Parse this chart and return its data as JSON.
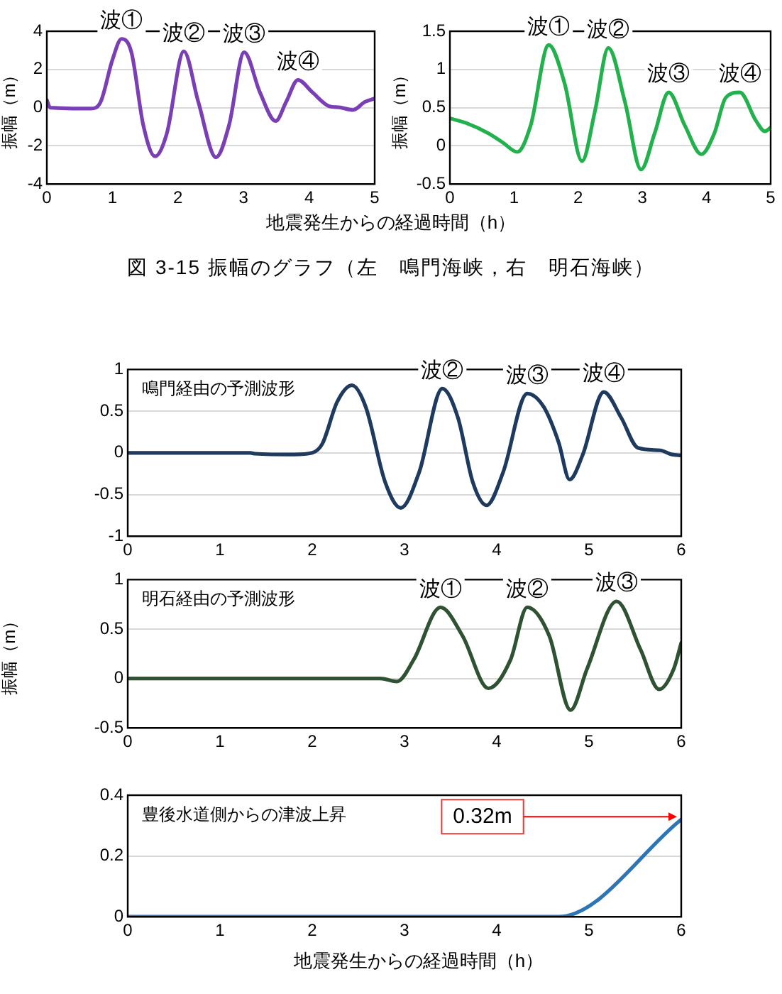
{
  "chart_data": [
    {
      "type": "line",
      "ylabel": "振幅（m）",
      "xlabel": "地震発生からの経過時間（h）",
      "color": "#7b3fb5",
      "marker": "none",
      "line_style": "solid",
      "grid": "y",
      "xlim": [
        0,
        5
      ],
      "xticks": [
        0,
        1,
        2,
        3,
        4,
        5
      ],
      "ylim": [
        -4,
        4
      ],
      "yticks": [
        -4,
        -2,
        0,
        2,
        4
      ],
      "x": [
        0,
        0.05,
        0.67,
        0.82,
        1.0,
        1.14,
        1.29,
        1.47,
        1.65,
        1.83,
        2.09,
        2.31,
        2.58,
        2.78,
        3.01,
        3.25,
        3.49,
        3.65,
        3.83,
        4.05,
        4.31,
        4.45,
        4.67,
        4.85,
        5.0
      ],
      "values": [
        0.4,
        0,
        -0.05,
        0.3,
        2.5,
        3.6,
        2.9,
        -0.9,
        -2.55,
        -1.35,
        2.95,
        0.3,
        -2.6,
        -0.9,
        2.9,
        0.8,
        -0.7,
        0.3,
        1.45,
        0.8,
        0.07,
        0.02,
        -0.12,
        0.3,
        0.48
      ],
      "annotations": [
        {
          "text": "波①",
          "x": 1.14,
          "y": 3.6
        },
        {
          "text": "波②",
          "x": 2.09,
          "y": 2.95
        },
        {
          "text": "波③",
          "x": 3.01,
          "y": 2.9
        },
        {
          "text": "波④",
          "x": 3.83,
          "y": 1.45
        },
        "図 3-15 振幅のグラフ（左　鳴門海峡，右　明石海峡）"
      ]
    },
    {
      "type": "line",
      "ylabel": "振幅（m）",
      "color": "#22b14c",
      "marker": "none",
      "line_style": "solid",
      "grid": "y",
      "xlim": [
        0,
        5
      ],
      "xticks": [
        0,
        1,
        2,
        3,
        4,
        5
      ],
      "ylim": [
        -0.5,
        1.5
      ],
      "yticks": [
        -0.5,
        0,
        0.5,
        1,
        1.5
      ],
      "x": [
        0,
        0.25,
        0.61,
        0.83,
        1.05,
        1.26,
        1.54,
        1.79,
        2.06,
        2.26,
        2.47,
        2.73,
        2.98,
        3.19,
        3.41,
        3.66,
        3.92,
        4.12,
        4.3,
        4.52,
        4.77,
        4.91,
        5.0
      ],
      "values": [
        0.36,
        0.3,
        0.16,
        0.04,
        -0.08,
        0.27,
        1.32,
        0.81,
        -0.2,
        0.45,
        1.28,
        0.57,
        -0.31,
        0.16,
        0.7,
        0.27,
        -0.11,
        0.16,
        0.63,
        0.7,
        0.33,
        0.19,
        0.24
      ],
      "annotations": [
        {
          "text": "波①",
          "x": 1.54,
          "y": 1.32
        },
        {
          "text": "波②",
          "x": 2.47,
          "y": 1.28
        },
        {
          "text": "波③",
          "x": 3.41,
          "y": 0.7
        },
        {
          "text": "波④",
          "x": 4.52,
          "y": 0.7
        }
      ]
    },
    {
      "type": "line",
      "title": "鳴門経由の予測波形",
      "color": "#1f3a5f",
      "marker": "none",
      "line_style": "solid",
      "grid": "y",
      "xlim": [
        0,
        6
      ],
      "xticks": [
        0,
        1,
        2,
        3,
        4,
        5,
        6
      ],
      "ylim": [
        -1,
        1
      ],
      "yticks": [
        -1,
        -0.5,
        0,
        0.5,
        1
      ],
      "x": [
        0,
        1.33,
        1.38,
        1.8,
        2.0,
        2.11,
        2.27,
        2.43,
        2.58,
        2.79,
        2.96,
        3.16,
        3.41,
        3.58,
        3.74,
        3.89,
        4.07,
        4.33,
        4.51,
        4.67,
        4.79,
        4.93,
        5.16,
        5.35,
        5.53,
        5.77,
        5.9,
        6.0
      ],
      "values": [
        0,
        0,
        -0.01,
        -0.02,
        0,
        0.11,
        0.61,
        0.81,
        0.55,
        -0.35,
        -0.66,
        -0.23,
        0.77,
        0.42,
        -0.35,
        -0.63,
        -0.23,
        0.71,
        0.55,
        0.13,
        -0.32,
        -0.03,
        0.73,
        0.42,
        0.06,
        0.03,
        -0.02,
        -0.03
      ],
      "annotations": [
        {
          "text": "波②",
          "x": 3.41,
          "y": 0.77
        },
        {
          "text": "波③",
          "x": 4.33,
          "y": 0.71
        },
        {
          "text": "波④",
          "x": 5.16,
          "y": 0.73
        }
      ]
    },
    {
      "type": "line",
      "title": "明石経由の予測波形",
      "ylabel": "振幅（m）",
      "color": "#2f5233",
      "marker": "none",
      "line_style": "solid",
      "grid": "y",
      "xlim": [
        0,
        6
      ],
      "xticks": [
        0,
        1,
        2,
        3,
        4,
        5,
        6
      ],
      "ylim": [
        -0.5,
        1
      ],
      "yticks": [
        -0.5,
        0,
        0.5,
        1
      ],
      "x": [
        0,
        2.74,
        2.92,
        3.1,
        3.39,
        3.63,
        3.91,
        4.15,
        4.33,
        4.57,
        4.8,
        4.98,
        5.3,
        5.56,
        5.76,
        5.92,
        6.0
      ],
      "values": [
        0,
        0,
        -0.03,
        0.19,
        0.72,
        0.43,
        -0.1,
        0.19,
        0.72,
        0.43,
        -0.32,
        0.1,
        0.78,
        0.29,
        -0.11,
        0.1,
        0.36
      ],
      "annotations": [
        {
          "text": "波①",
          "x": 3.39,
          "y": 0.72
        },
        {
          "text": "波②",
          "x": 4.33,
          "y": 0.72
        },
        {
          "text": "波③",
          "x": 5.3,
          "y": 0.78
        }
      ]
    },
    {
      "type": "line",
      "title": "豊後水道側からの津波上昇",
      "xlabel": "地震発生からの経過時間（h）",
      "color": "#2e75b6",
      "marker": "none",
      "line_style": "solid",
      "grid": "y",
      "xlim": [
        0,
        6
      ],
      "xticks": [
        0,
        1,
        2,
        3,
        4,
        5,
        6
      ],
      "ylim": [
        0,
        0.4
      ],
      "yticks": [
        0,
        0.2,
        0.4
      ],
      "x": [
        0,
        4.67,
        6.0
      ],
      "values": [
        0,
        0,
        0.32
      ],
      "annotations": [
        {
          "text": "0.32m",
          "x": 6.0,
          "y": 0.32
        }
      ]
    }
  ]
}
